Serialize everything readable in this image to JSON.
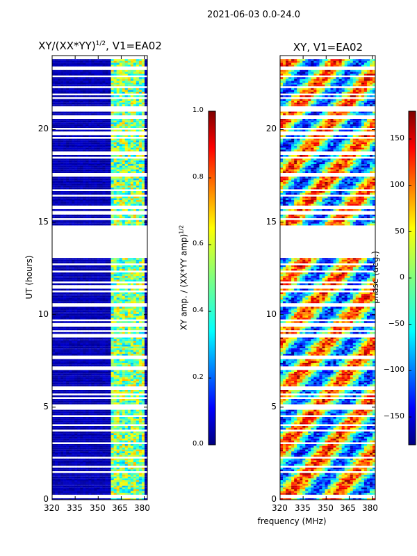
{
  "figure": {
    "suptitle": "2021-06-03 0.0-24.0",
    "xlabel_shared": "frequency (MHz)"
  },
  "panels": [
    {
      "title": "XY/(XX*YY)",
      "title_sup": "1/2",
      "title_suffix": ", V1=EA02",
      "ylabel": "UT (hours)",
      "x_ticks": [
        "320",
        "335",
        "350",
        "365",
        "380"
      ],
      "y_ticks": [
        "0",
        "5",
        "10",
        "15",
        "20"
      ],
      "colorbar": {
        "label": "XY amp. / (XX*YY amp)",
        "label_sup": "1/2",
        "range": [
          0.0,
          1.0
        ],
        "ticks": [
          "0.0",
          "0.2",
          "0.4",
          "0.6",
          "0.8",
          "1.0"
        ]
      }
    },
    {
      "title": "XY, V1=EA02",
      "ylabel": "",
      "x_ticks": [
        "320",
        "335",
        "350",
        "365",
        "380"
      ],
      "y_ticks": [
        "0",
        "5",
        "10",
        "15",
        "20"
      ],
      "colorbar": {
        "label": "phase (deg.)",
        "range": [
          -180,
          180
        ],
        "ticks": [
          "150",
          "100",
          "50",
          "0",
          "−50",
          "−100",
          "−150"
        ]
      }
    }
  ],
  "chart_data": [
    {
      "type": "heatmap",
      "title": "XY/(XX*YY)^1/2, V1=EA02",
      "xlabel": "frequency (MHz)",
      "ylabel": "UT (hours)",
      "xlim": [
        320,
        382
      ],
      "ylim": [
        0,
        24
      ],
      "x_ticks": [
        320,
        335,
        350,
        365,
        380
      ],
      "y_ticks": [
        0,
        5,
        10,
        15,
        20
      ],
      "colorbar_label": "XY amp. / (XX*YY amp)^1/2",
      "colorbar_range": [
        0.0,
        1.0
      ],
      "colorbar_ticks": [
        0.0,
        0.2,
        0.4,
        0.6,
        0.8,
        1.0
      ],
      "colormap": "jet",
      "high_amplitude_band_mhz": [
        359,
        381
      ],
      "data_gap_ut_hours": [
        [
          13.2,
          14.9
        ]
      ],
      "background_value": 0.0
    },
    {
      "type": "heatmap",
      "title": "XY, V1=EA02",
      "xlabel": "frequency (MHz)",
      "ylabel": "",
      "xlim": [
        320,
        382
      ],
      "ylim": [
        0,
        24
      ],
      "x_ticks": [
        320,
        335,
        350,
        365,
        380
      ],
      "y_ticks": [
        0,
        5,
        10,
        15,
        20
      ],
      "colorbar_label": "phase (deg.)",
      "colorbar_range": [
        -180,
        180
      ],
      "colorbar_ticks": [
        150,
        100,
        50,
        0,
        -50,
        -100,
        -150
      ],
      "colormap": "jet",
      "data_gap_ut_hours": [
        [
          13.2,
          14.9
        ]
      ]
    }
  ]
}
